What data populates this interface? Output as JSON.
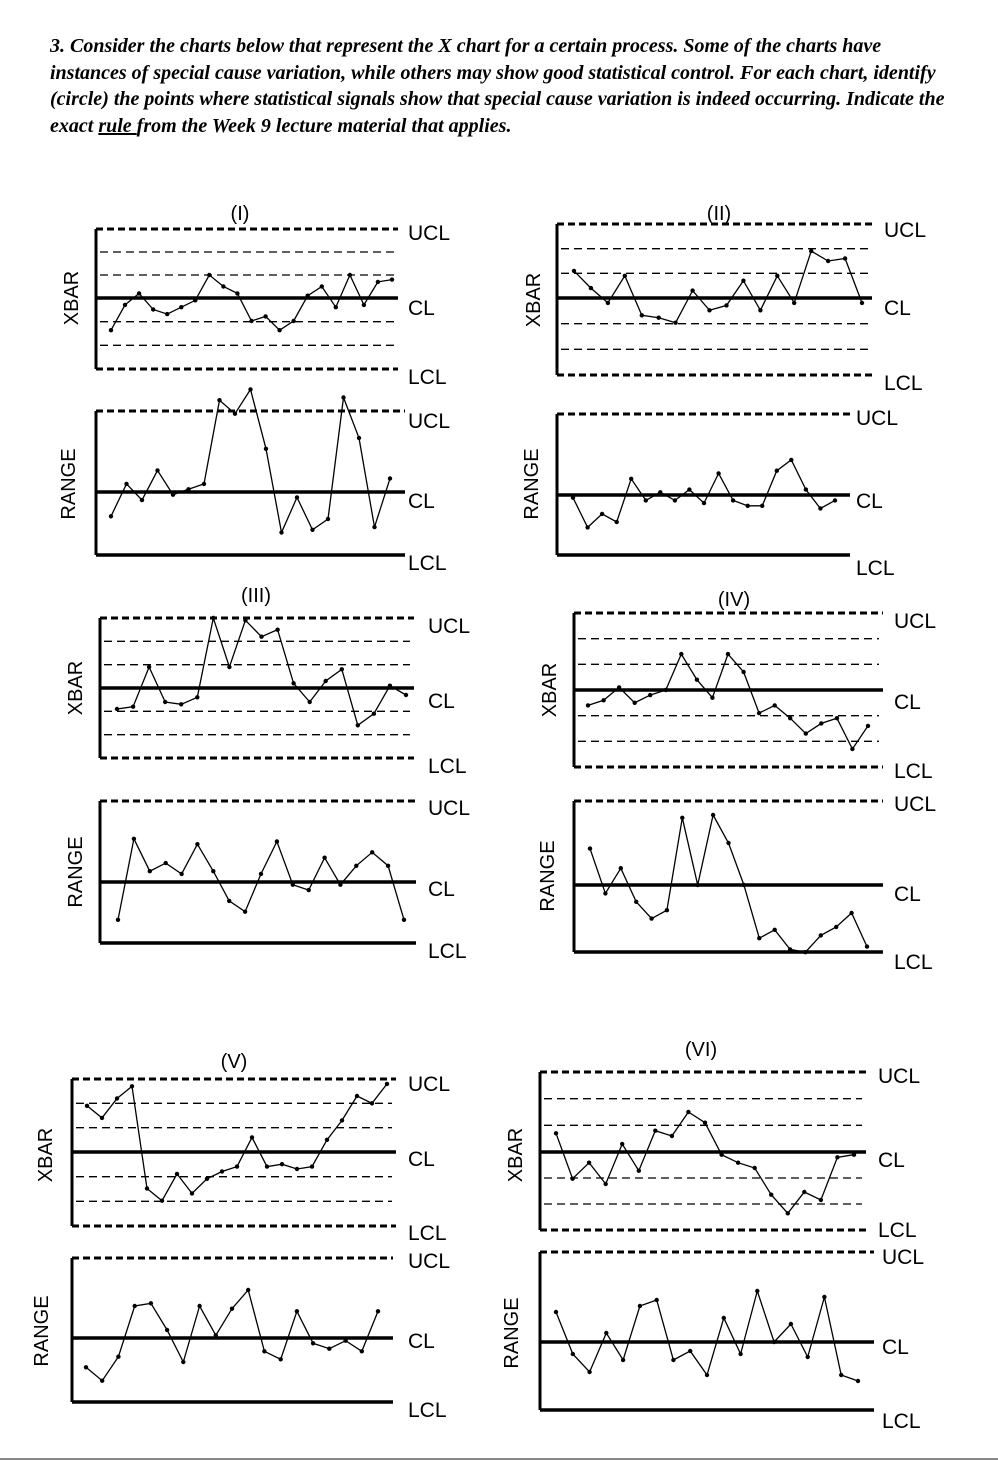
{
  "question": {
    "number": "3.",
    "part1": " Consider the charts below that represent the X chart for a certain process. Some of the charts have instances of special cause variation, while others may show good statistical control. For each chart, identify (circle) the points where statistical signals show that special cause variation is indeed occurring. Indicate the exact ",
    "underlined": "rule ",
    "part2": "from the Week 9 lecture material that applies."
  },
  "chart_data": [
    {
      "type": "line",
      "title": "(I)",
      "xbar": {
        "ylabel": "XBAR",
        "limit_labels": [
          "UCL",
          "CL",
          "LCL"
        ],
        "ylim": [
          -3,
          3
        ],
        "values": [
          -1.4,
          -0.3,
          0.2,
          -0.5,
          -0.7,
          -0.4,
          -0.1,
          1.0,
          0.5,
          0.2,
          -1.0,
          -0.8,
          -1.4,
          -1.0,
          0.1,
          0.5,
          -0.4,
          1.0,
          -0.3,
          0.7,
          0.8
        ]
      },
      "range": {
        "ylabel": "RANGE",
        "limit_labels": [
          "UCL",
          "CL",
          "LCL"
        ],
        "ylim": [
          -3,
          3
        ],
        "values": [
          -0.9,
          0.3,
          -0.3,
          0.8,
          -0.1,
          0.1,
          0.3,
          3.4,
          2.9,
          3.8,
          1.6,
          -1.5,
          -0.2,
          -1.4,
          -1.0,
          3.5,
          2.0,
          -1.3,
          0.5
        ]
      }
    },
    {
      "type": "line",
      "title": "(II)",
      "xbar": {
        "ylabel": "XBAR",
        "limit_labels": [
          "UCL",
          "CL",
          "LCL"
        ],
        "ylim": [
          -3,
          3
        ],
        "values": [
          1.1,
          0.4,
          -0.2,
          0.9,
          -0.7,
          -0.8,
          -1.0,
          0.3,
          -0.5,
          -0.3,
          0.7,
          -0.5,
          0.9,
          -0.2,
          1.9,
          1.5,
          1.6,
          -0.2
        ]
      },
      "range": {
        "ylabel": "RANGE",
        "limit_labels": [
          "UCL",
          "CL",
          "LCL"
        ],
        "ylim": [
          -3,
          3
        ],
        "values": [
          -0.1,
          -1.2,
          -0.7,
          -1.0,
          0.6,
          -0.2,
          0.1,
          -0.2,
          0.2,
          -0.3,
          0.8,
          -0.2,
          -0.4,
          -0.4,
          0.9,
          1.3,
          0.2,
          -0.5,
          -0.2
        ]
      }
    },
    {
      "type": "line",
      "title": "(III)",
      "xbar": {
        "ylabel": "XBAR",
        "limit_labels": [
          "UCL",
          "CL",
          "LCL"
        ],
        "ylim": [
          -3,
          3
        ],
        "values": [
          -0.9,
          -0.8,
          0.9,
          -0.6,
          -0.7,
          -0.4,
          3.0,
          0.9,
          2.9,
          2.2,
          2.5,
          0.2,
          -0.6,
          0.3,
          0.8,
          -1.6,
          -1.1,
          0.1,
          -0.3
        ]
      },
      "range": {
        "ylabel": "RANGE",
        "limit_labels": [
          "UCL",
          "CL",
          "LCL"
        ],
        "ylim": [
          -3,
          3
        ],
        "values": [
          -1.4,
          1.6,
          0.4,
          0.7,
          0.3,
          1.4,
          0.4,
          -0.7,
          -1.1,
          0.3,
          1.5,
          -0.1,
          -0.3,
          0.9,
          -0.1,
          0.6,
          1.1,
          0.6,
          -1.4
        ]
      },
      "note": ""
    },
    {
      "type": "line",
      "title": "(IV)",
      "xbar": {
        "ylabel": "XBAR",
        "limit_labels": [
          "UCL",
          "CL",
          "LCL"
        ],
        "ylim": [
          -3,
          3
        ],
        "values": [
          -0.6,
          -0.4,
          0.1,
          -0.5,
          -0.2,
          0.0,
          1.4,
          0.4,
          -0.3,
          1.4,
          0.7,
          -0.9,
          -0.6,
          -1.1,
          -1.7,
          -1.3,
          -1.1,
          -2.3,
          -1.4
        ]
      },
      "range": {
        "ylabel": "RANGE",
        "limit_labels": [
          "UCL",
          "CL",
          "LCL"
        ],
        "ylim": [
          -3,
          3
        ],
        "values": [
          1.3,
          -0.3,
          0.6,
          -0.6,
          -1.2,
          -0.9,
          2.4,
          0.0,
          2.5,
          1.5,
          0.0,
          -1.9,
          -1.6,
          -2.3,
          -2.4,
          -1.8,
          -1.5,
          -1.0,
          -2.2
        ]
      }
    },
    {
      "type": "line",
      "title": "(V)",
      "xbar": {
        "ylabel": "XBAR",
        "limit_labels": [
          "UCL",
          "CL",
          "LCL"
        ],
        "ylim": [
          -3,
          3
        ],
        "values": [
          1.9,
          1.4,
          2.2,
          2.7,
          -1.5,
          -2.0,
          -0.9,
          -1.7,
          -1.1,
          -0.8,
          -0.6,
          0.6,
          -0.6,
          -0.5,
          -0.7,
          -0.6,
          0.5,
          1.3,
          2.3,
          2.0,
          2.8
        ]
      },
      "range": {
        "ylabel": "RANGE",
        "limit_labels": [
          "UCL",
          "CL",
          "LCL"
        ],
        "ylim": [
          -3,
          3
        ],
        "values": [
          -1.1,
          -1.6,
          -0.7,
          1.2,
          1.3,
          0.3,
          -0.9,
          1.2,
          0.1,
          1.1,
          1.8,
          -0.5,
          -0.8,
          1.0,
          -0.2,
          -0.4,
          -0.1,
          -0.5,
          1.0
        ]
      }
    },
    {
      "type": "line",
      "title": "(VI)",
      "xbar": {
        "ylabel": "XBAR",
        "limit_labels": [
          "UCL",
          "CL",
          "LCL"
        ],
        "ylim": [
          -3,
          3
        ],
        "values": [
          0.7,
          -1.0,
          -0.4,
          -1.2,
          0.3,
          -0.7,
          0.8,
          0.6,
          1.5,
          1.1,
          -0.1,
          -0.4,
          -0.6,
          -1.6,
          -2.3,
          -1.5,
          -1.8,
          -0.2,
          -0.1
        ]
      },
      "range": {
        "ylabel": "RANGE",
        "limit_labels": [
          "UCL",
          "CL",
          "LCL"
        ],
        "ylim": [
          -3,
          3
        ],
        "values": [
          1.0,
          -0.4,
          -1.0,
          0.3,
          -0.6,
          1.2,
          1.4,
          -0.6,
          -0.3,
          -1.1,
          0.8,
          -0.4,
          1.7,
          0.0,
          0.6,
          -0.5,
          1.5,
          -1.1,
          -1.3
        ]
      }
    }
  ]
}
